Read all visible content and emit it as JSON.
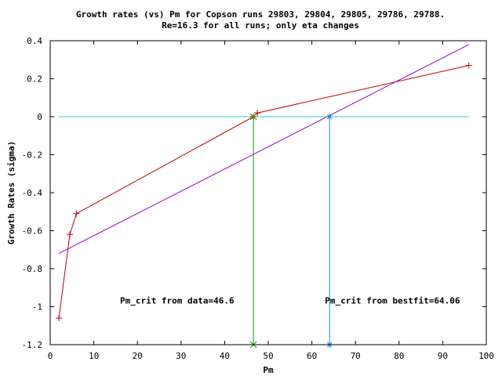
{
  "chart_data": {
    "type": "line",
    "title": "Growth rates (vs) Pm for Copson runs 29803, 29804, 29805, 29786, 29788.",
    "subtitle": "Re=16.3 for all runs; only eta changes",
    "xlabel": "Pm",
    "ylabel": "Growth Rates (sigma)",
    "xlim": [
      0,
      100
    ],
    "ylim": [
      -1.2,
      0.4
    ],
    "x_ticks": [
      0,
      10,
      20,
      30,
      40,
      50,
      60,
      70,
      80,
      90,
      100
    ],
    "x_tick_labels": [
      "0",
      "10",
      "20",
      "30",
      "40",
      "50",
      "60",
      "70",
      "80",
      "90",
      "100"
    ],
    "y_ticks": [
      -1.2,
      -1,
      -0.8,
      -0.6,
      -0.4,
      -0.2,
      0,
      0.2,
      0.4
    ],
    "y_tick_labels": [
      "-1.2",
      "-1",
      "-0.8",
      "-0.6",
      "-0.4",
      "-0.2",
      "0",
      "0.2",
      "0.4"
    ],
    "grid": false,
    "series": [
      {
        "color": "#c00000",
        "marker": "+",
        "x": [
          2,
          4.5,
          6,
          46.6,
          47.5,
          96
        ],
        "y": [
          -1.06,
          -0.62,
          -0.51,
          0.0,
          0.02,
          0.27
        ]
      },
      {
        "color": "#9400d3",
        "marker": "none",
        "x": [
          2,
          96
        ],
        "y": [
          -0.72,
          0.38
        ]
      },
      {
        "color": "#33cccc",
        "marker": "none",
        "x": [
          2,
          96
        ],
        "y": [
          0,
          0
        ]
      },
      {
        "color": "#00a000",
        "marker": "x",
        "x": [
          46.6,
          46.6
        ],
        "y": [
          0,
          -1.2
        ]
      },
      {
        "color": "#1e88e5",
        "marker": "*",
        "x": [
          64.06,
          64.06
        ],
        "y": [
          0,
          -1.2
        ]
      }
    ],
    "annotations": [
      {
        "text": "Pm_crit from data=46.6",
        "x": 16,
        "y": -1.0
      },
      {
        "text": "Pm_crit from bestfit=64.06",
        "x": 63,
        "y": -1.0
      }
    ]
  }
}
